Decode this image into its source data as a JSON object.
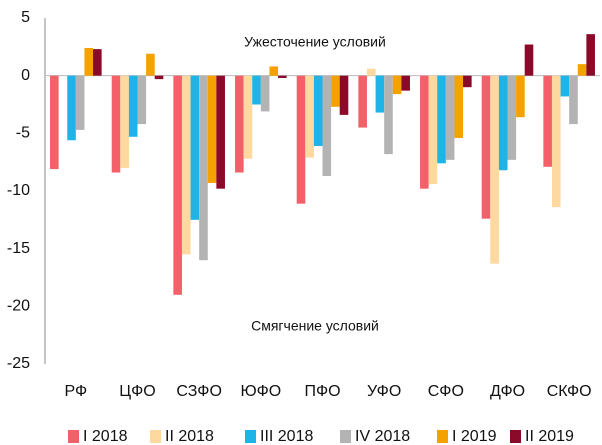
{
  "chart_data": {
    "type": "bar",
    "annotations": [
      "Ужесточение условий",
      "Смягчение условий"
    ],
    "categories": [
      "РФ",
      "ЦФО",
      "СЗФО",
      "ЮФО",
      "ПФО",
      "УФО",
      "СФО",
      "ДФО",
      "СКФО"
    ],
    "series": [
      {
        "name": "I 2018",
        "color": "#f4606a",
        "values": [
          -8.1,
          -8.4,
          -19.0,
          -8.4,
          -11.1,
          -4.5,
          -9.8,
          -12.4,
          -7.9
        ]
      },
      {
        "name": "II 2018",
        "color": "#fdd9a0",
        "values": [
          null,
          -8.0,
          -15.5,
          -7.2,
          -7.1,
          0.6,
          -9.4,
          -16.3,
          -11.4
        ]
      },
      {
        "name": "III 2018",
        "color": "#1eb4e8",
        "values": [
          -5.6,
          -5.3,
          -12.5,
          -2.5,
          -6.1,
          -3.2,
          -7.6,
          -8.2,
          -1.8
        ]
      },
      {
        "name": "IV 2018",
        "color": "#b3b3b3",
        "values": [
          -4.7,
          -4.2,
          -16.0,
          -3.1,
          -8.7,
          -6.8,
          -7.3,
          -7.3,
          -4.2
        ]
      },
      {
        "name": "I 2019",
        "color": "#f5a200",
        "values": [
          2.4,
          1.9,
          -9.3,
          0.8,
          -2.7,
          -1.6,
          -5.4,
          -3.6,
          1.0
        ]
      },
      {
        "name": "II 2019",
        "color": "#8b0a2a",
        "values": [
          2.3,
          -0.3,
          -9.8,
          -0.2,
          -3.4,
          -1.3,
          -1.0,
          2.7,
          3.6
        ]
      }
    ],
    "ylim": [
      -25,
      5
    ],
    "yticks": [
      -25,
      -20,
      -15,
      -10,
      -5,
      0,
      5
    ],
    "grid": false,
    "legend": "bottom"
  }
}
